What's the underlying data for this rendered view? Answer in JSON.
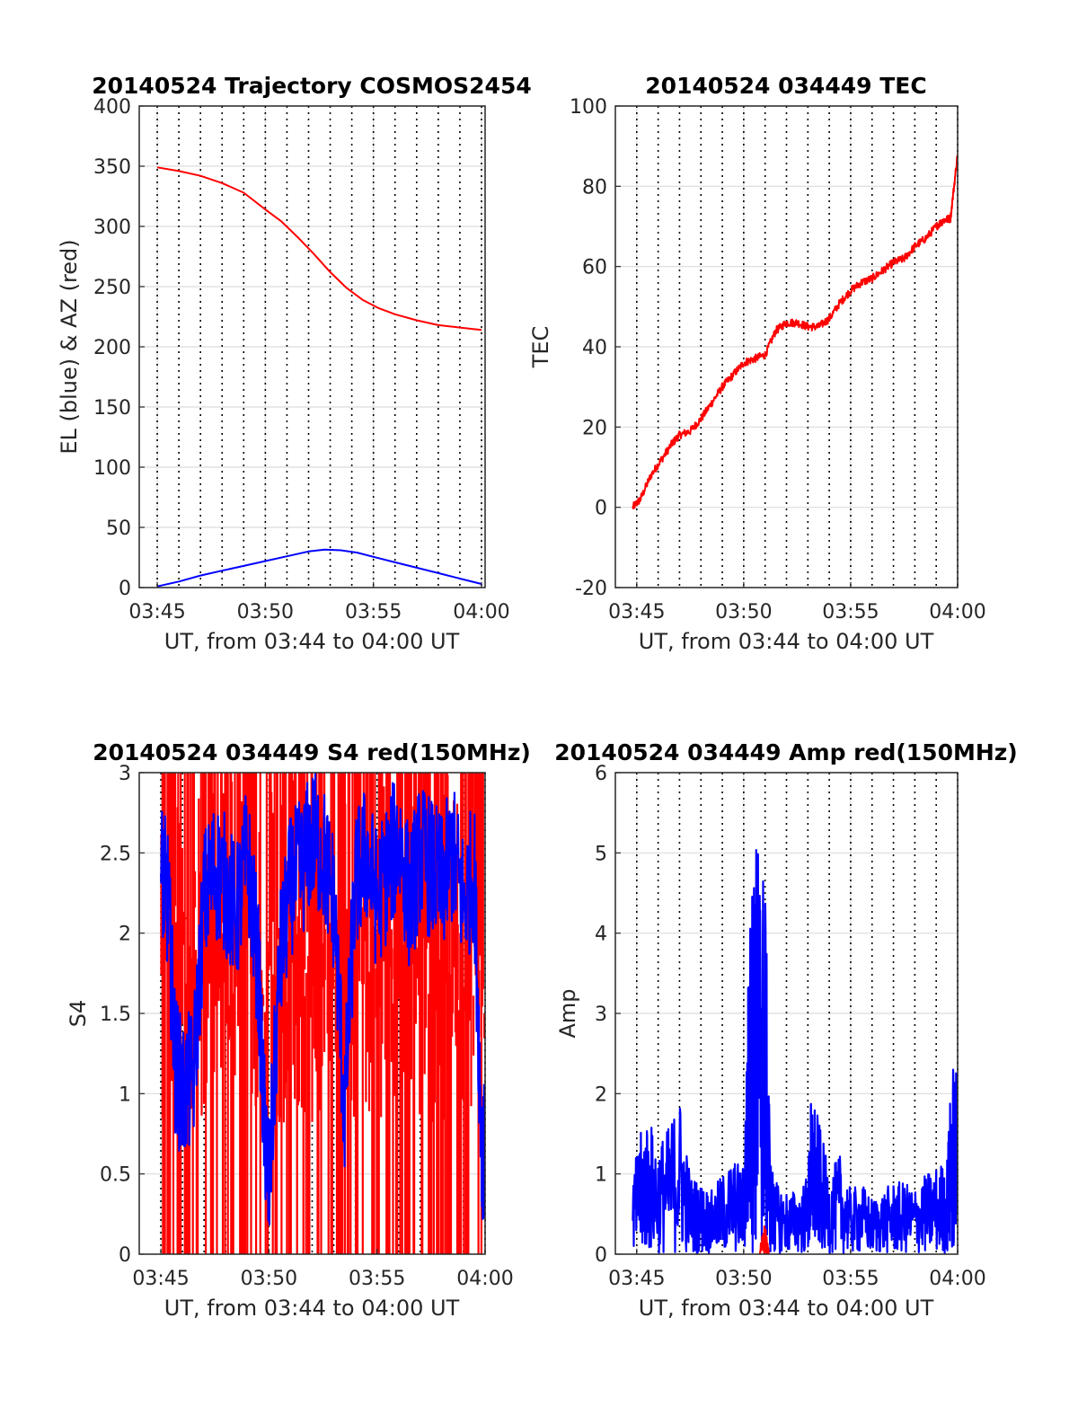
{
  "x_tick_labels": [
    "03:45",
    "03:50",
    "03:55",
    "04:00"
  ],
  "x_axis_label": "UT, from 03:44 to 04:00 UT",
  "colors": {
    "red": "#ff0000",
    "blue": "#0000ff",
    "grid": "#dcdcdc",
    "marker_line": "#000000",
    "axis": "#262626"
  },
  "chart_data": [
    {
      "type": "line",
      "title": "20140524 Trajectory COSMOS2454",
      "ylabel": "EL (blue) & AZ (red)",
      "xlabel": "UT, from 03:44 to 04:00 UT",
      "xlim": [
        "03:44:10",
        "04:00:10"
      ],
      "ylim": [
        0,
        400
      ],
      "yticks": [
        0,
        50,
        100,
        150,
        200,
        250,
        300,
        350,
        400
      ],
      "grid": true,
      "series": [
        {
          "color": "#ff0000",
          "time": [
            "03:45:00",
            "03:46:00",
            "03:47:00",
            "03:48:00",
            "03:49:00",
            "03:50:00",
            "03:50:45",
            "03:51:30",
            "03:52:15",
            "03:53:00",
            "03:53:45",
            "03:54:30",
            "03:55:15",
            "03:56:00",
            "03:57:00",
            "03:58:00",
            "03:59:00",
            "04:00:00"
          ],
          "values": [
            349,
            346,
            342,
            336,
            328,
            314,
            304,
            291,
            277,
            262,
            249,
            239,
            232,
            227,
            222,
            218,
            216,
            214
          ]
        },
        {
          "color": "#0000ff",
          "time": [
            "03:45:00",
            "03:46:00",
            "03:47:00",
            "03:48:00",
            "03:49:00",
            "03:50:00",
            "03:51:00",
            "03:52:00",
            "03:52:45",
            "03:53:30",
            "03:54:15",
            "03:55:00",
            "03:56:00",
            "03:57:00",
            "03:58:00",
            "03:59:00",
            "04:00:00"
          ],
          "values": [
            1,
            5,
            10,
            14,
            18,
            22,
            26,
            30,
            31.5,
            31,
            29,
            25.5,
            21,
            16.5,
            12,
            7.5,
            3
          ]
        }
      ]
    },
    {
      "type": "line",
      "title": "20140524 034449 TEC",
      "ylabel": "TEC",
      "xlabel": "UT, from 03:44 to 04:00 UT",
      "xlim": [
        "03:44:00",
        "04:00:00"
      ],
      "ylim": [
        -20,
        100
      ],
      "yticks": [
        -20,
        0,
        20,
        40,
        60,
        80,
        100
      ],
      "grid": true,
      "series": [
        {
          "color": "#ff0000",
          "time": [
            "03:44:49",
            "03:45:10",
            "03:45:40",
            "03:46:10",
            "03:46:40",
            "03:47:00",
            "03:47:30",
            "03:48:00",
            "03:48:30",
            "03:49:00",
            "03:49:30",
            "03:50:00",
            "03:50:30",
            "03:51:00",
            "03:51:30",
            "03:52:00",
            "03:52:30",
            "03:53:00",
            "03:53:30",
            "03:54:00",
            "03:54:30",
            "03:55:00",
            "03:55:30",
            "03:56:00",
            "03:56:30",
            "03:57:00",
            "03:57:30",
            "03:58:00",
            "03:58:30",
            "03:59:00",
            "03:59:20",
            "03:59:40",
            "04:00:00"
          ],
          "values": [
            0,
            2,
            8,
            12,
            16,
            18,
            19,
            22,
            26,
            30,
            33,
            36,
            37,
            38,
            44,
            46,
            46,
            45,
            45,
            47,
            51,
            54,
            56,
            57,
            59,
            61,
            62,
            65,
            67,
            70,
            71.5,
            72,
            88
          ]
        }
      ]
    },
    {
      "type": "line",
      "title": "20140524 034449 S4 red(150MHz)",
      "ylabel": "S4",
      "xlabel": "UT, from 03:44 to 04:00 UT",
      "xlim": [
        "03:44:00",
        "04:00:00"
      ],
      "ylim": [
        0,
        3
      ],
      "yticks": [
        0,
        0.5,
        1,
        1.5,
        2,
        2.5,
        3
      ],
      "grid": true,
      "series": [
        {
          "color": "#ff0000",
          "drawing": "dense spikes, many reaching 0 and 3",
          "ylim": [
            0,
            3
          ]
        },
        {
          "color": "#0000ff",
          "drawing": "noisy trace mostly between 1 and 3, dips to about 0.35 near 03:50",
          "time": [
            "03:45:00",
            "03:45:20",
            "03:45:40",
            "03:46:00",
            "03:46:30",
            "03:47:00",
            "03:47:30",
            "03:48:00",
            "03:48:30",
            "03:49:00",
            "03:49:30",
            "03:49:45",
            "03:50:00",
            "03:50:30",
            "03:51:00",
            "03:51:30",
            "03:52:00",
            "03:52:30",
            "03:53:00",
            "03:53:30",
            "03:54:00",
            "03:54:30",
            "03:55:00",
            "03:55:30",
            "03:56:00",
            "03:56:30",
            "03:57:00",
            "03:57:30",
            "03:58:00",
            "03:58:30",
            "03:59:00",
            "03:59:30",
            "03:59:50",
            "04:00:00"
          ],
          "values": [
            2.4,
            2.2,
            1.2,
            1.0,
            1.1,
            2.2,
            2.4,
            2.3,
            2.1,
            2.5,
            1.8,
            0.9,
            0.4,
            1.8,
            2.3,
            2.4,
            2.6,
            2.5,
            2.2,
            0.9,
            2.3,
            2.5,
            2.2,
            2.4,
            2.6,
            2.2,
            2.5,
            2.4,
            2.3,
            2.5,
            2.2,
            2.4,
            0.7,
            0.6
          ]
        }
      ]
    },
    {
      "type": "line",
      "title": "20140524 034449 Amp red(150MHz)",
      "ylabel": "Amp",
      "xlabel": "UT, from 03:44 to 04:00 UT",
      "xlim": [
        "03:44:00",
        "04:00:00"
      ],
      "ylim": [
        0,
        6
      ],
      "yticks": [
        0,
        1,
        2,
        3,
        4,
        5,
        6
      ],
      "grid": true,
      "series": [
        {
          "color": "#0000ff",
          "time": [
            "03:44:49",
            "03:45:10",
            "03:45:30",
            "03:46:00",
            "03:46:30",
            "03:47:00",
            "03:47:30",
            "03:48:00",
            "03:48:30",
            "03:49:00",
            "03:49:30",
            "03:50:00",
            "03:50:15",
            "03:50:30",
            "03:50:45",
            "03:51:00",
            "03:51:15",
            "03:51:30",
            "03:52:00",
            "03:52:30",
            "03:53:00",
            "03:53:10",
            "03:53:30",
            "03:54:00",
            "03:54:30",
            "03:55:00",
            "03:55:30",
            "03:56:00",
            "03:56:30",
            "03:57:00",
            "03:57:30",
            "03:58:00",
            "03:58:30",
            "03:59:00",
            "03:59:30",
            "03:59:45",
            "04:00:00"
          ],
          "values": [
            1.0,
            1.5,
            1.75,
            1.4,
            1.6,
            2.0,
            1.0,
            0.9,
            0.8,
            1.0,
            1.2,
            1.1,
            4.0,
            5.3,
            5.1,
            4.8,
            1.2,
            0.9,
            0.8,
            0.8,
            1.0,
            2.1,
            1.7,
            1.0,
            1.25,
            0.8,
            0.9,
            0.7,
            0.8,
            0.9,
            0.9,
            0.85,
            1.0,
            1.1,
            1.2,
            2.45,
            2.25
          ]
        },
        {
          "color": "#ff0000",
          "time": [
            "03:50:45",
            "03:51:00",
            "03:51:10"
          ],
          "values": [
            0.1,
            0.4,
            0.05
          ]
        }
      ],
      "peak": 5.3
    }
  ]
}
